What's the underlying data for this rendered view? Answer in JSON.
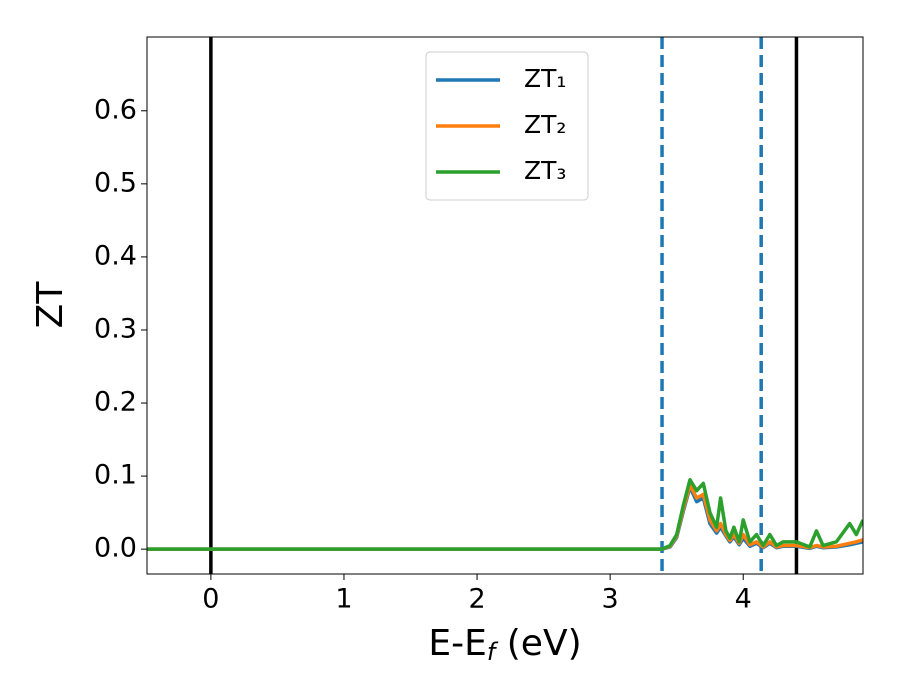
{
  "chart_data": {
    "type": "line",
    "x_label": [
      "E-E",
      "f",
      " (eV)"
    ],
    "y_label": "ZT",
    "xlim": [
      -0.48,
      4.9
    ],
    "ylim": [
      -0.034,
      0.701
    ],
    "xticks": [
      0,
      1,
      2,
      3,
      4
    ],
    "yticks": [
      {
        "value": 0,
        "label": "0.0"
      },
      0.1,
      0.2,
      0.3,
      0.4,
      0.5,
      0.6
    ],
    "legend": "upper center",
    "vlines": [
      {
        "x": 0,
        "color": "#000000",
        "style": "solid"
      },
      {
        "x": 4.4,
        "color": "#000000",
        "style": "solid"
      },
      {
        "x": 3.39,
        "color": "#1f77b4",
        "style": "dashed"
      },
      {
        "x": 4.135,
        "color": "#1f77b4",
        "style": "dashed"
      }
    ],
    "x": [
      -0.48,
      3.3,
      3.39,
      3.45,
      3.5,
      3.55,
      3.6,
      3.65,
      3.7,
      3.75,
      3.8,
      3.83,
      3.87,
      3.9,
      3.93,
      3.97,
      4.0,
      4.05,
      4.1,
      4.15,
      4.2,
      4.25,
      4.3,
      4.4,
      4.5,
      4.55,
      4.6,
      4.7,
      4.8,
      4.85,
      4.9
    ],
    "series": [
      {
        "name": "ZT₁",
        "color": "#1f77b4",
        "values": [
          0,
          0,
          0,
          0.003,
          0.016,
          0.052,
          0.085,
          0.065,
          0.07,
          0.035,
          0.022,
          0.03,
          0.018,
          0.01,
          0.017,
          0.006,
          0.015,
          0.004,
          0.008,
          0.002,
          0.008,
          0.002,
          0.004,
          0.004,
          0.001,
          0.004,
          0.002,
          0.003,
          0.006,
          0.008,
          0.01
        ]
      },
      {
        "name": "ZT₂",
        "color": "#ff7f0e",
        "values": [
          0,
          0,
          0,
          0.004,
          0.018,
          0.055,
          0.088,
          0.07,
          0.075,
          0.04,
          0.025,
          0.035,
          0.02,
          0.012,
          0.02,
          0.008,
          0.02,
          0.006,
          0.01,
          0.003,
          0.01,
          0.003,
          0.005,
          0.005,
          0.002,
          0.005,
          0.003,
          0.004,
          0.008,
          0.01,
          0.013
        ]
      },
      {
        "name": "ZT₃",
        "color": "#2ca02c",
        "values": [
          0,
          0,
          0,
          0.005,
          0.02,
          0.06,
          0.095,
          0.08,
          0.09,
          0.05,
          0.03,
          0.07,
          0.025,
          0.015,
          0.03,
          0.01,
          0.04,
          0.01,
          0.02,
          0.005,
          0.02,
          0.005,
          0.01,
          0.01,
          0.003,
          0.025,
          0.005,
          0.01,
          0.035,
          0.02,
          0.04
        ]
      }
    ]
  }
}
